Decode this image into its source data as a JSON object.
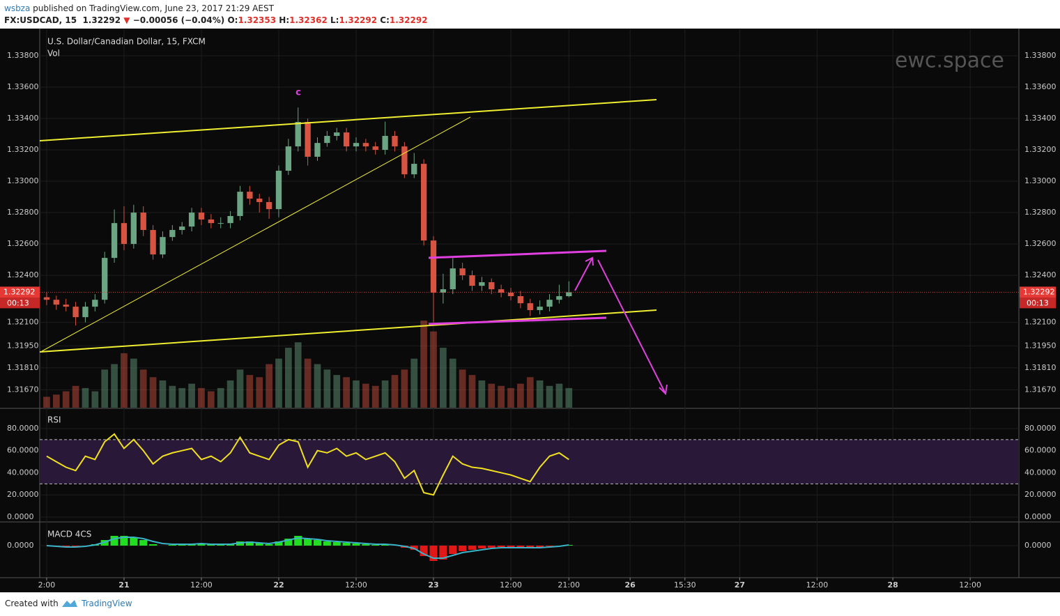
{
  "header": {
    "author": "wsbza",
    "published": "published on TradingView.com, June 23, 2017 21:29 AEST",
    "symbol": "FX:USDCAD, 15",
    "last": "1.32292",
    "arrow": "▼",
    "change": "−0.00056 (−0.04%)",
    "ohlc": [
      {
        "label": "O:",
        "value": "1.32353"
      },
      {
        "label": "H:",
        "value": "1.32362"
      },
      {
        "label": "L:",
        "value": "1.32292"
      },
      {
        "label": "C:",
        "value": "1.32292"
      }
    ]
  },
  "chart_data": [
    {
      "type": "candlestick",
      "title": "U.S. Dollar/Canadian Dollar, 15, FXCM",
      "volume_label": "Vol",
      "watermark": "ewc.space",
      "annotation": "c",
      "grid": true,
      "x": [
        0,
        6,
        12,
        18,
        24,
        30,
        36,
        42,
        48,
        54,
        60,
        66,
        72,
        78,
        84,
        90,
        96,
        102,
        108,
        114,
        120,
        126,
        132,
        138,
        144,
        150,
        156,
        162,
        168,
        174,
        180,
        186,
        192,
        198,
        204,
        210,
        216,
        222,
        228,
        234,
        240,
        246,
        252,
        258,
        264,
        270,
        276,
        282,
        288,
        294,
        300,
        306,
        312,
        318,
        324
      ],
      "open": [
        1.3226,
        1.32244,
        1.32213,
        1.322,
        1.32133,
        1.322,
        1.32244,
        1.32511,
        1.32733,
        1.326,
        1.328,
        1.32689,
        1.32533,
        1.32644,
        1.32689,
        1.32711,
        1.328,
        1.32756,
        1.32733,
        1.32733,
        1.32778,
        1.32933,
        1.32889,
        1.32867,
        1.32822,
        1.33067,
        1.33222,
        1.33378,
        1.33156,
        1.33244,
        1.33289,
        1.33311,
        1.33222,
        1.33244,
        1.33222,
        1.332,
        1.33289,
        1.33222,
        1.33044,
        1.33111,
        1.32622,
        1.32289,
        1.32311,
        1.32444,
        1.324,
        1.32333,
        1.32356,
        1.32311,
        1.32289,
        1.32267,
        1.32222,
        1.32178,
        1.322,
        1.32244,
        1.32267
      ],
      "high": [
        1.3229,
        1.3227,
        1.3225,
        1.3223,
        1.3223,
        1.3228,
        1.3255,
        1.3282,
        1.3284,
        1.3285,
        1.3284,
        1.3272,
        1.3268,
        1.3272,
        1.3274,
        1.3283,
        1.3283,
        1.3279,
        1.3277,
        1.3281,
        1.3297,
        1.3297,
        1.3292,
        1.329,
        1.331,
        1.3327,
        1.3347,
        1.334,
        1.3328,
        1.3332,
        1.3334,
        1.3334,
        1.3328,
        1.3327,
        1.3325,
        1.3338,
        1.3332,
        1.3325,
        1.3318,
        1.3314,
        1.3265,
        1.3241,
        1.3251,
        1.3248,
        1.3243,
        1.3239,
        1.3238,
        1.3234,
        1.3232,
        1.323,
        1.3225,
        1.3224,
        1.3228,
        1.3234,
        1.32362
      ],
      "low": [
        1.3221,
        1.3218,
        1.3217,
        1.3208,
        1.321,
        1.3217,
        1.3222,
        1.3248,
        1.3256,
        1.3257,
        1.3265,
        1.325,
        1.3251,
        1.3262,
        1.3266,
        1.3268,
        1.3272,
        1.327,
        1.327,
        1.327,
        1.3275,
        1.3285,
        1.328,
        1.3276,
        1.3277,
        1.3304,
        1.3319,
        1.331,
        1.3313,
        1.3322,
        1.3326,
        1.3319,
        1.3319,
        1.3319,
        1.3317,
        1.3317,
        1.3319,
        1.3302,
        1.3302,
        1.3259,
        1.321,
        1.3222,
        1.3228,
        1.3237,
        1.323,
        1.323,
        1.3228,
        1.3226,
        1.3224,
        1.3219,
        1.3214,
        1.3215,
        1.3217,
        1.3222,
        1.3226
      ],
      "close": [
        1.32244,
        1.32213,
        1.322,
        1.32133,
        1.322,
        1.32244,
        1.32511,
        1.32733,
        1.326,
        1.328,
        1.32689,
        1.32533,
        1.32644,
        1.32689,
        1.32711,
        1.328,
        1.32756,
        1.32733,
        1.32733,
        1.32778,
        1.32933,
        1.32889,
        1.32867,
        1.32822,
        1.33067,
        1.33222,
        1.33378,
        1.33156,
        1.33244,
        1.33289,
        1.33311,
        1.33222,
        1.33244,
        1.33222,
        1.332,
        1.33289,
        1.33222,
        1.33044,
        1.33111,
        1.32622,
        1.32289,
        1.32311,
        1.32444,
        1.324,
        1.32333,
        1.32356,
        1.32311,
        1.32289,
        1.32267,
        1.32222,
        1.32178,
        1.322,
        1.32244,
        1.32267,
        1.32292
      ],
      "volume": [
        10,
        12,
        15,
        20,
        18,
        15,
        35,
        40,
        50,
        45,
        35,
        28,
        25,
        20,
        18,
        22,
        18,
        15,
        18,
        25,
        35,
        30,
        28,
        40,
        45,
        55,
        60,
        45,
        40,
        35,
        30,
        28,
        25,
        22,
        20,
        25,
        30,
        35,
        45,
        80,
        70,
        55,
        45,
        35,
        30,
        25,
        22,
        20,
        18,
        22,
        28,
        25,
        20,
        22,
        18
      ],
      "up_color": "#6ba583",
      "down_color": "#d75442",
      "last_price": {
        "value": 1.32292,
        "label": "1.32292"
      },
      "countdown": "00:13",
      "ylim": [
        1.31556,
        1.33969
      ],
      "yticks": [
        {
          "value": 1.338,
          "label": "1.33800"
        },
        {
          "value": 1.336,
          "label": "1.33600"
        },
        {
          "value": 1.334,
          "label": "1.33400"
        },
        {
          "value": 1.332,
          "label": "1.33200"
        },
        {
          "value": 1.33,
          "label": "1.33000"
        },
        {
          "value": 1.328,
          "label": "1.32800"
        },
        {
          "value": 1.326,
          "label": "1.32600"
        },
        {
          "value": 1.324,
          "label": "1.32400"
        },
        {
          "value": 1.321,
          "label": "1.32100"
        },
        {
          "value": 1.3195,
          "label": "1.31950"
        },
        {
          "value": 1.3181,
          "label": "1.31810"
        },
        {
          "value": 1.3167,
          "label": "1.31670"
        }
      ],
      "xlim": [
        -4.3,
        603.2
      ],
      "xticks": [
        {
          "value": 0,
          "label": "2:00"
        },
        {
          "value": 48,
          "label": "21"
        },
        {
          "value": 96,
          "label": "12:00"
        },
        {
          "value": 144,
          "label": "22"
        },
        {
          "value": 192,
          "label": "12:00"
        },
        {
          "value": 240,
          "label": "23"
        },
        {
          "value": 288,
          "label": "12:00"
        },
        {
          "value": 324,
          "label": "21:00"
        },
        {
          "value": 362,
          "label": "26"
        },
        {
          "value": 396,
          "label": "15:30"
        },
        {
          "value": 430,
          "label": "27"
        },
        {
          "value": 478,
          "label": "12:00"
        },
        {
          "value": 525,
          "label": "28"
        },
        {
          "value": 573,
          "label": "12:00"
        }
      ]
    },
    {
      "type": "line",
      "title": "RSI",
      "color": "#f0e020",
      "band": [
        30,
        70
      ],
      "band_color": "#2a1838",
      "values": [
        55,
        50,
        45,
        42,
        55,
        52,
        68,
        75,
        62,
        70,
        60,
        48,
        55,
        58,
        60,
        62,
        52,
        55,
        50,
        58,
        72,
        58,
        55,
        52,
        65,
        70,
        68,
        45,
        60,
        58,
        62,
        55,
        58,
        52,
        55,
        58,
        50,
        35,
        42,
        22,
        20,
        38,
        55,
        48,
        45,
        44,
        42,
        40,
        38,
        35,
        32,
        45,
        55,
        58,
        52
      ],
      "ylim": [
        -3.8,
        97.6
      ],
      "yticks": [
        {
          "value": 0,
          "label": "0.0000"
        },
        {
          "value": 20,
          "label": "20.0000"
        },
        {
          "value": 40,
          "label": "40.0000"
        },
        {
          "value": 60,
          "label": "60.0000"
        },
        {
          "value": 80,
          "label": "80.0000"
        }
      ]
    },
    {
      "type": "bar",
      "title": "MACD 4CS",
      "up_color": "#22dd22",
      "down_color": "#e01818",
      "values": [
        0,
        -1e-05,
        -2e-05,
        -2e-05,
        0,
        2e-05,
        8e-05,
        0.00014,
        0.00014,
        0.00012,
        8e-05,
        2e-05,
        0,
        1e-05,
        2e-05,
        3e-05,
        3e-05,
        2e-05,
        2e-05,
        3e-05,
        6e-05,
        6e-05,
        4e-05,
        2e-05,
        6e-05,
        0.0001,
        0.00014,
        0.0001,
        8e-05,
        6e-05,
        5e-05,
        4e-05,
        3e-05,
        2e-05,
        1e-05,
        1e-05,
        0,
        -3e-05,
        -6e-05,
        -0.00015,
        -0.00022,
        -0.0002,
        -0.00012,
        -8e-05,
        -6e-05,
        -4e-05,
        -3e-05,
        -2e-05,
        -2e-05,
        -2e-05,
        -3e-05,
        -2e-05,
        -1e-05,
        0,
        1e-05
      ],
      "line": {
        "color": "#3bb3c9",
        "values": [
          0,
          -1e-05,
          -2e-05,
          -2e-05,
          -1e-05,
          1e-05,
          5e-05,
          0.0001,
          0.00012,
          0.00012,
          0.0001,
          6e-05,
          3e-05,
          2e-05,
          2e-05,
          2e-05,
          3e-05,
          2e-05,
          2e-05,
          2e-05,
          4e-05,
          5e-05,
          4e-05,
          3e-05,
          5e-05,
          8e-05,
          0.00011,
          0.0001,
          9e-05,
          7e-05,
          6e-05,
          5e-05,
          4e-05,
          3e-05,
          2e-05,
          2e-05,
          1e-05,
          -1e-05,
          -4e-05,
          -0.00012,
          -0.00018,
          -0.00018,
          -0.00014,
          -0.0001,
          -8e-05,
          -6e-05,
          -4e-05,
          -3e-05,
          -3e-05,
          -3e-05,
          -3e-05,
          -3e-05,
          -2e-05,
          -1e-05,
          1e-05
        ]
      },
      "ylim": [
        -0.00045,
        0.00033
      ],
      "yticks": [
        {
          "value": 0,
          "label": "0.0000"
        }
      ]
    }
  ],
  "footer": {
    "created": "Created with",
    "brand": "TradingView"
  }
}
